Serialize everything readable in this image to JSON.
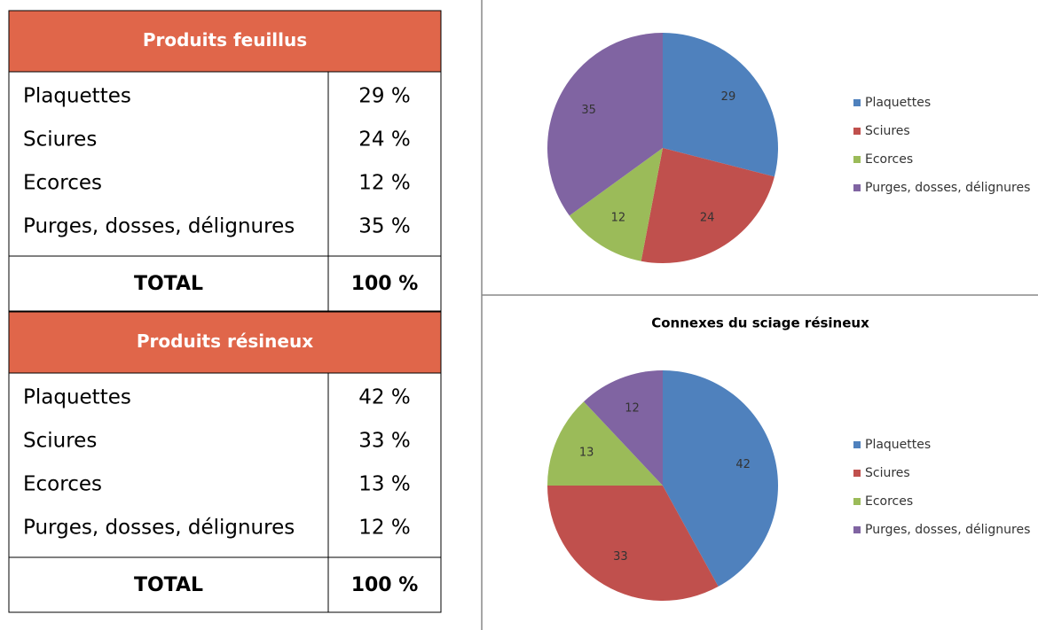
{
  "tables": [
    {
      "header": "Produits feuillus",
      "rows": [
        [
          "Plaquettes",
          "29 %"
        ],
        [
          "Sciures",
          "24 %"
        ],
        [
          "Ecorces",
          "12 %"
        ],
        [
          "Purges, dosses, délignures",
          "35 %"
        ]
      ],
      "total": [
        "TOTAL",
        "100 %"
      ]
    },
    {
      "header": "Produits résineux",
      "rows": [
        [
          "Plaquettes",
          "42 %"
        ],
        [
          "Sciures",
          "33 %"
        ],
        [
          "Ecorces",
          "13 %"
        ],
        [
          "Purges, dosses, délignures",
          "12 %"
        ]
      ],
      "total": [
        "TOTAL",
        "100 %"
      ]
    }
  ],
  "chart_data": [
    {
      "type": "pie",
      "categories": [
        "Plaquettes",
        "Sciures",
        "Ecorces",
        "Purges, dosses, délignures"
      ],
      "values": [
        29,
        24,
        12,
        35
      ],
      "colors": [
        "#4f81bd",
        "#c0504d",
        "#9bbb59",
        "#8064a2"
      ]
    },
    {
      "type": "pie",
      "title": "Connexes du sciage résineux",
      "categories": [
        "Plaquettes",
        "Sciures",
        "Ecorces",
        "Purges, dosses, délignures"
      ],
      "values": [
        42,
        33,
        13,
        12
      ],
      "colors": [
        "#4f81bd",
        "#c0504d",
        "#9bbb59",
        "#8064a2"
      ]
    }
  ]
}
